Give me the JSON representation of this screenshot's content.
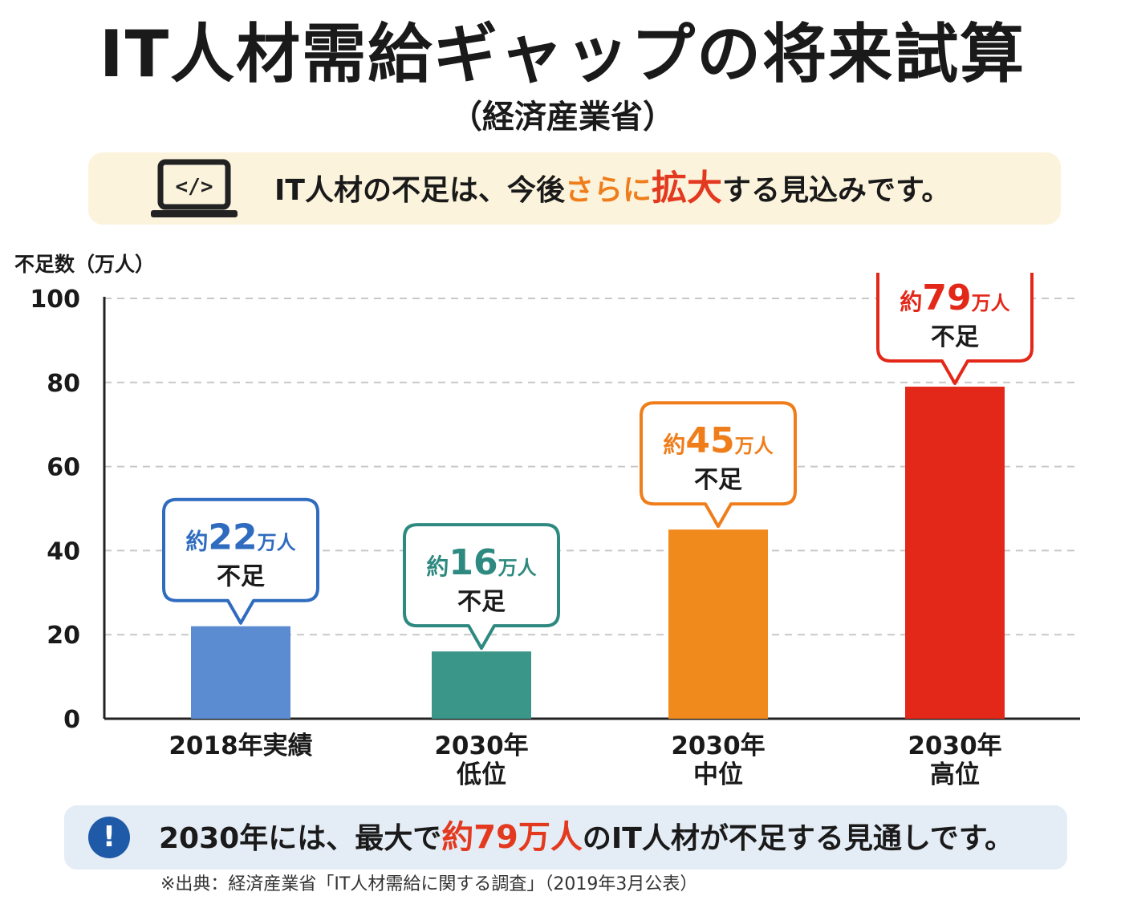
{
  "header": {
    "title": "IT人材需給ギャップの将来試算",
    "subtitle": "（経済産業省）"
  },
  "banner": {
    "icon": "laptop-code-icon",
    "text_pre": "IT人材の不足は、今後",
    "text_mid": "さらに",
    "text_emph": "拡大",
    "text_post": "する見込みです。",
    "mid_color": "#ef7d1a",
    "emph_color": "#e33a1f"
  },
  "chart_data": {
    "type": "bar",
    "ylabel": "不足数（万人）",
    "ylim": [
      0,
      100
    ],
    "yticks": [
      "0",
      "20",
      "40",
      "60",
      "80",
      "100"
    ],
    "grid": "dashed-horizontal",
    "categories": [
      {
        "line1": "2018年実績",
        "line2": ""
      },
      {
        "line1": "2030年",
        "line2": "低位"
      },
      {
        "line1": "2030年",
        "line2": "中位"
      },
      {
        "line1": "2030年",
        "line2": "高位"
      }
    ],
    "values": [
      22,
      16,
      45,
      79
    ],
    "colors": [
      "#5b8bd0",
      "#3a9688",
      "#f08a1d",
      "#e3281a"
    ],
    "callouts": [
      {
        "prefix": "約",
        "number": "22",
        "unit": "万人",
        "note": "不足",
        "color": "#2f6cc0"
      },
      {
        "prefix": "約",
        "number": "16",
        "unit": "万人",
        "note": "不足",
        "color": "#2e8a80"
      },
      {
        "prefix": "約",
        "number": "45",
        "unit": "万人",
        "note": "不足",
        "color": "#ef7d1a"
      },
      {
        "prefix": "約",
        "number": "79",
        "unit": "万人",
        "note": "不足",
        "color": "#e3281a"
      }
    ]
  },
  "note": {
    "icon": "exclamation-icon",
    "mark": "!",
    "text_pre": "2030年には、最大で",
    "text_emph": "約79万人",
    "text_post": "のIT人材が不足する見通しです。"
  },
  "source": "※出典：経済産業省「IT人材需給に関する調査」（2019年3月公表）"
}
